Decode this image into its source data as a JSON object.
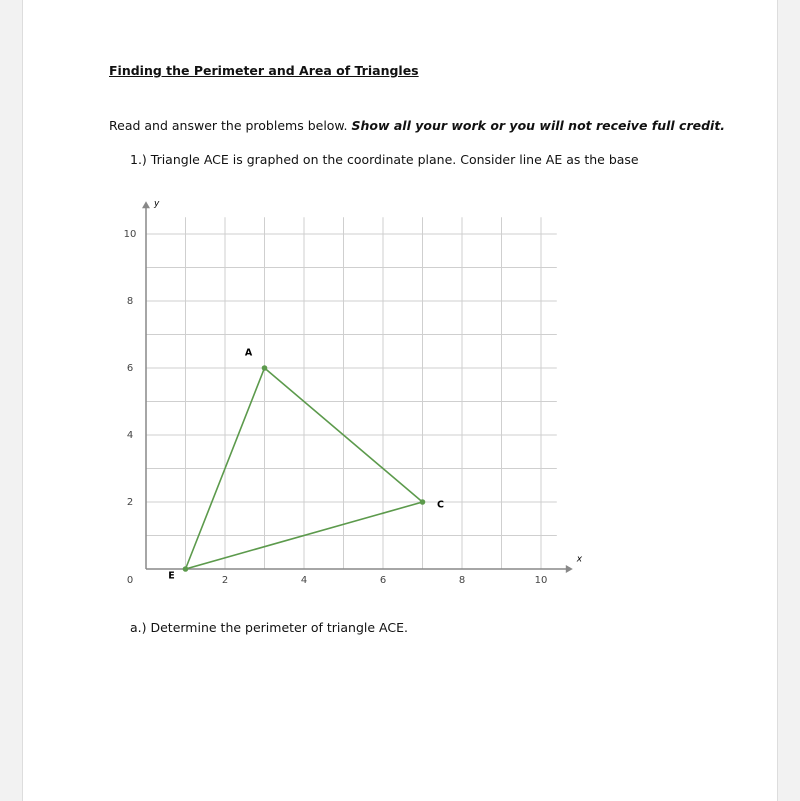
{
  "header": {
    "title": "Finding the Perimeter and Area of Triangles"
  },
  "instructions": {
    "text": "Read and answer the problems below.",
    "emphasis": "Show all your work or you will not receive full credit."
  },
  "problem": {
    "text": "1.) Triangle ACE is graphed on the coordinate plane. Consider line AE as the base"
  },
  "chart_data": {
    "type": "polygon",
    "xlabel": "x",
    "ylabel": "y",
    "color": "#5c9a4c",
    "points": [
      {
        "label": "A",
        "x": 3,
        "y": 6
      },
      {
        "label": "C",
        "x": 7,
        "y": 2
      },
      {
        "label": "E",
        "x": 1,
        "y": 0
      }
    ],
    "xlim": [
      0,
      10.4
    ],
    "ylim": [
      0,
      10.5
    ],
    "xticks": [
      0,
      2,
      4,
      6,
      8,
      10
    ],
    "yticks": [
      2,
      4,
      6,
      8,
      10
    ],
    "x_minor_ticks": [
      1,
      2,
      3,
      4,
      5,
      6,
      7,
      8,
      9,
      10
    ],
    "y_minor_ticks": [
      1,
      2,
      3,
      4,
      5,
      6,
      7,
      8,
      9,
      10
    ],
    "grid": true
  },
  "question_a": {
    "text": "a.) Determine the perimeter of triangle ACE."
  }
}
